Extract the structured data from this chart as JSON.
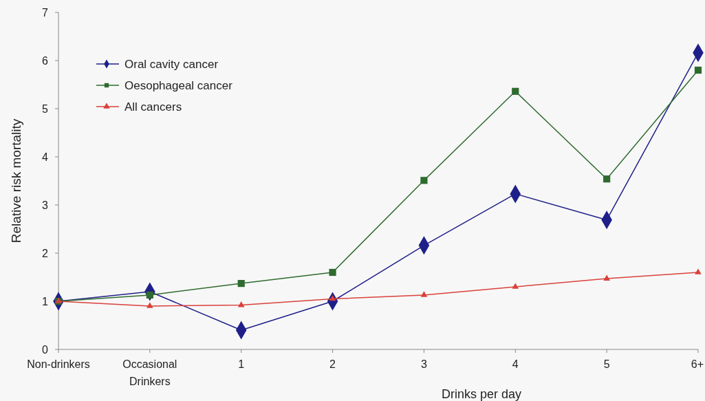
{
  "chart_data": {
    "type": "line",
    "xlabel": "Drinks per day",
    "ylabel": "Relative risk mortality",
    "categories": [
      "Non-drinkers",
      "Occasional\nDrinkers",
      "1",
      "2",
      "3",
      "4",
      "5",
      "6+"
    ],
    "series": [
      {
        "name": "Oral cavity cancer",
        "color": "#1f1f8a",
        "marker": "diamond",
        "values": [
          1.0,
          1.2,
          0.4,
          1.0,
          2.16,
          3.23,
          2.69,
          6.16
        ]
      },
      {
        "name": "Oesophageal cancer",
        "color": "#2e6b2e",
        "marker": "square",
        "values": [
          1.0,
          1.13,
          1.37,
          1.6,
          3.51,
          5.36,
          3.54,
          5.8
        ]
      },
      {
        "name": "All cancers",
        "color": "#d9413a",
        "marker": "triangle",
        "values": [
          1.0,
          0.9,
          0.92,
          1.05,
          1.13,
          1.3,
          1.47,
          1.6
        ]
      }
    ],
    "ylim": [
      0,
      7
    ],
    "yticks": [
      0,
      1,
      2,
      3,
      4,
      5,
      6,
      7
    ],
    "grid": false,
    "legend": "top left",
    "line_style": "solid"
  }
}
